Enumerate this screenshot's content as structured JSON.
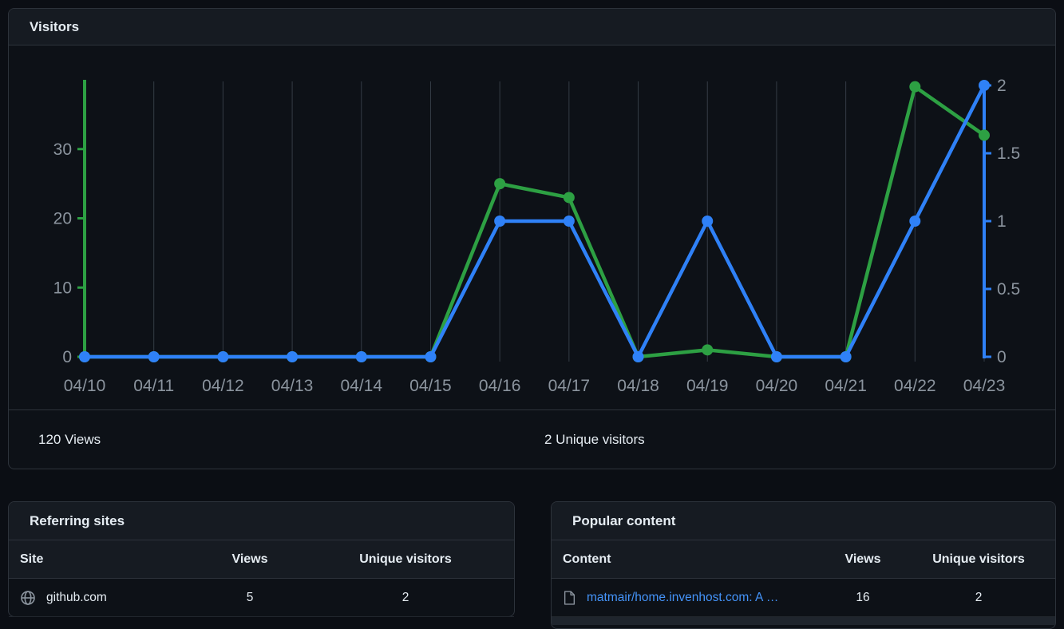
{
  "visitors_card": {
    "title": "Visitors",
    "stats": {
      "views_total": "120 Views",
      "unique_total": "2 Unique visitors"
    }
  },
  "chart_data": {
    "type": "line",
    "title": "Visitors",
    "x": [
      "04/10",
      "04/11",
      "04/12",
      "04/13",
      "04/14",
      "04/15",
      "04/16",
      "04/17",
      "04/18",
      "04/19",
      "04/20",
      "04/21",
      "04/22",
      "04/23"
    ],
    "series": [
      {
        "name": "Views",
        "axis": "left",
        "color": "#2da043",
        "values": [
          0,
          0,
          0,
          0,
          0,
          0,
          25,
          23,
          0,
          1,
          0,
          0,
          39,
          32
        ]
      },
      {
        "name": "Unique visitors",
        "axis": "right",
        "color": "#2f81f7",
        "values": [
          0,
          0,
          0,
          0,
          0,
          0,
          1,
          1,
          0,
          1,
          0,
          0,
          1,
          2
        ]
      }
    ],
    "left_axis": {
      "ticks": [
        "0",
        "10",
        "20",
        "30"
      ],
      "max": 40,
      "color": "#2da043"
    },
    "right_axis": {
      "ticks": [
        "0",
        "0.5",
        "1",
        "1.5",
        "2"
      ],
      "max": 2,
      "color": "#2f81f7"
    },
    "grid": "vertical",
    "grid_color": "#343c46",
    "tick_label_color": "#8b949e"
  },
  "referring_sites": {
    "title": "Referring sites",
    "columns": [
      "Site",
      "Views",
      "Unique visitors"
    ],
    "rows": [
      {
        "site": "github.com",
        "views": "5",
        "unique": "2"
      }
    ]
  },
  "popular_content": {
    "title": "Popular content",
    "columns": [
      "Content",
      "Views",
      "Unique visitors"
    ],
    "rows": [
      {
        "content": "matmair/home.invenhost.com: A …",
        "views": "16",
        "unique": "2"
      }
    ]
  },
  "colors": {
    "views_green": "#2da043",
    "unique_blue": "#2f81f7",
    "link": "#4493f8",
    "card_bg": "#0d1117",
    "header_bg": "#161b22",
    "border": "#2d333b"
  }
}
